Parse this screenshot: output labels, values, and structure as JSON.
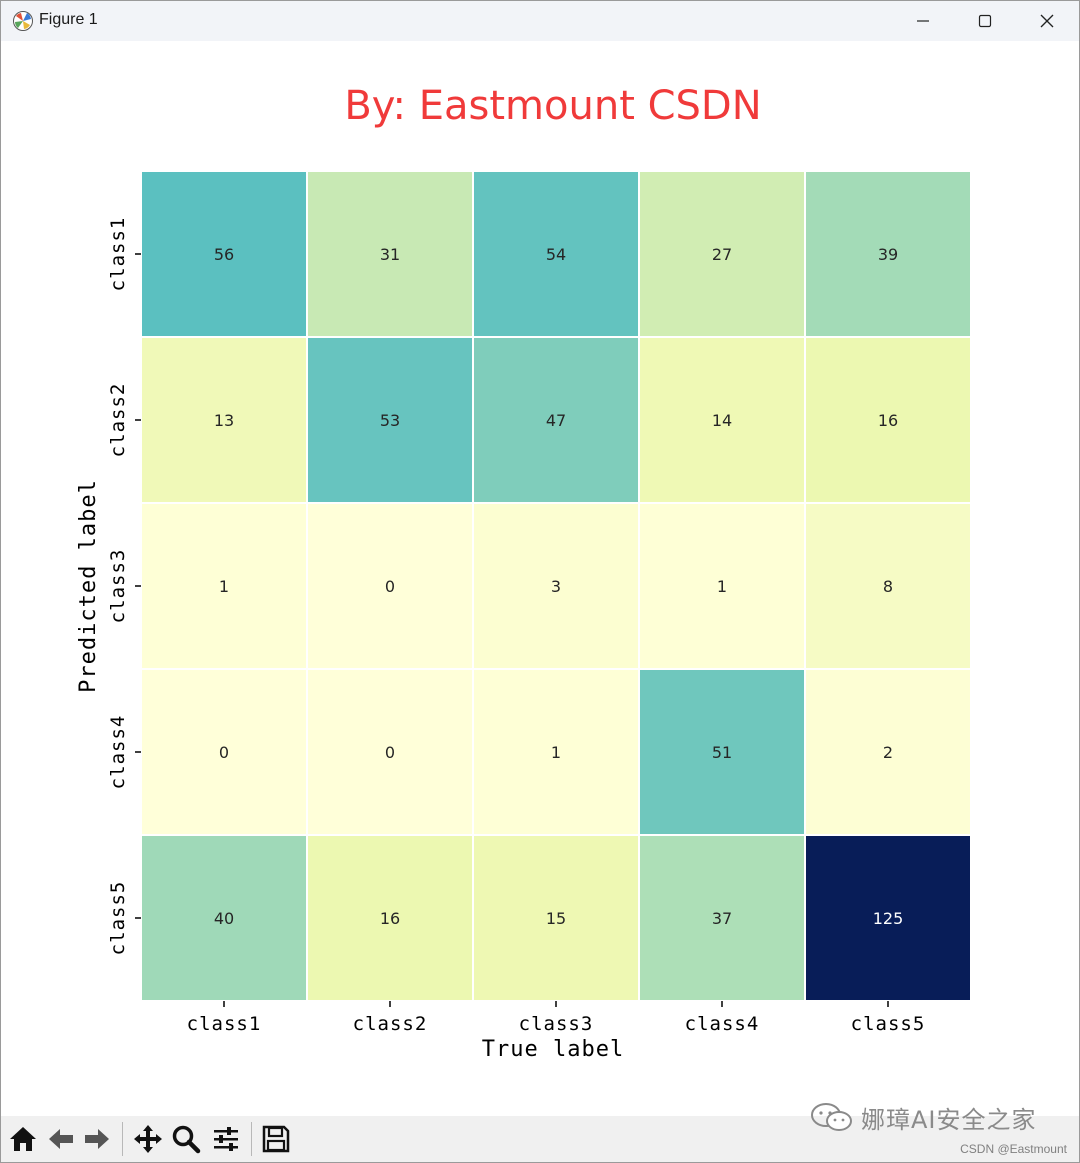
{
  "window": {
    "title": "Figure 1"
  },
  "chart_data": {
    "type": "heatmap",
    "title": "By:  Eastmount CSDN",
    "title_color": "#f03a3a",
    "xlabel": "True label",
    "ylabel": "Predicted label",
    "x_categories": [
      "class1",
      "class2",
      "class3",
      "class4",
      "class5"
    ],
    "y_categories": [
      "class1",
      "class2",
      "class3",
      "class4",
      "class5"
    ],
    "values": [
      [
        56,
        31,
        54,
        27,
        39
      ],
      [
        13,
        53,
        47,
        14,
        16
      ],
      [
        1,
        0,
        3,
        1,
        8
      ],
      [
        0,
        0,
        1,
        51,
        2
      ],
      [
        40,
        16,
        15,
        37,
        125
      ]
    ],
    "colormap": "YlGnBu",
    "vmin": 0,
    "vmax": 125,
    "annotated": true,
    "colorbar": false
  },
  "toolbar": {
    "buttons": [
      "home-icon",
      "back-icon",
      "forward-icon",
      "pan-icon",
      "zoom-icon",
      "configure-subplots-icon",
      "save-icon"
    ]
  },
  "watermark": {
    "text": "娜璋AI安全之家"
  },
  "credit": {
    "text": "CSDN @Eastmount"
  }
}
